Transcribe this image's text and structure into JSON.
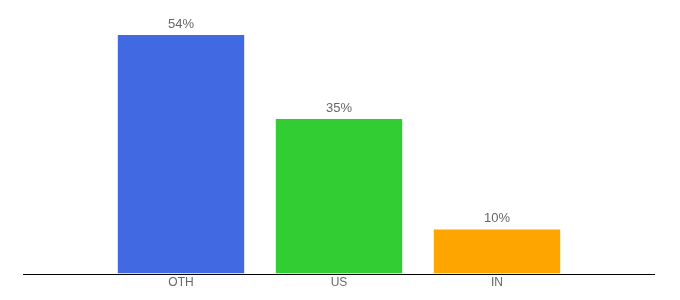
{
  "chart_data": {
    "type": "bar",
    "categories": [
      "OTH",
      "US",
      "IN"
    ],
    "values": [
      54,
      35,
      10
    ],
    "value_labels": [
      "54%",
      "35%",
      "10%"
    ],
    "colors": [
      "#4169e1",
      "#32cd32",
      "#ffa500"
    ],
    "ylim": [
      0,
      54
    ],
    "data_labels": true,
    "tick_labels": "x",
    "grid": false
  }
}
